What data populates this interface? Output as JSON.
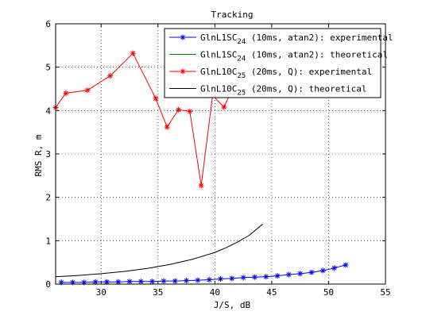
{
  "chart_data": {
    "type": "line",
    "title": "Tracking",
    "xlabel": "J/S, dB",
    "ylabel": "RMS R, m",
    "xlim": [
      26,
      55
    ],
    "ylim": [
      0,
      6
    ],
    "xticks": [
      30,
      35,
      40,
      45,
      50,
      55
    ],
    "yticks": [
      0,
      1,
      2,
      3,
      4,
      5,
      6
    ],
    "grid": true,
    "legend_position": "top-right",
    "series": [
      {
        "name": "GlnL1SC24 (10ms, atan2): experimental",
        "legend_base": "GlnL1SC",
        "legend_sub": "24",
        "legend_rest": " (10ms, atan2): experimental",
        "color": "#0000ff",
        "marker": "*",
        "x": [
          26.5,
          27.5,
          28.5,
          29.5,
          30.5,
          31.5,
          32.5,
          33.5,
          34.5,
          35.5,
          36.5,
          37.5,
          38.5,
          39.5,
          40.5,
          41.5,
          42.5,
          43.5,
          44.5,
          45.5,
          46.5,
          47.5,
          48.5,
          49.5,
          50.5,
          51.5
        ],
        "y": [
          0.04,
          0.04,
          0.04,
          0.05,
          0.05,
          0.05,
          0.06,
          0.06,
          0.06,
          0.07,
          0.07,
          0.08,
          0.09,
          0.1,
          0.12,
          0.13,
          0.15,
          0.16,
          0.17,
          0.19,
          0.22,
          0.24,
          0.27,
          0.31,
          0.37,
          0.44
        ]
      },
      {
        "name": "GlnL1SC24 (10ms, atan2): theoretical",
        "legend_base": "GlnL1SC",
        "legend_sub": "24",
        "legend_rest": " (10ms, atan2): theoretical",
        "color": "#008000",
        "marker": "",
        "x": [],
        "y": []
      },
      {
        "name": "GlnL10C25 (20ms, Q): experimental",
        "legend_base": "GlnL10C",
        "legend_sub": "25",
        "legend_rest": " (20ms, Q): experimental",
        "color": "#ff0000",
        "marker": "*",
        "x": [
          26,
          26.9,
          28.8,
          30.8,
          32.8,
          34.8,
          35.8,
          36.8,
          37.8,
          38.8,
          39.8,
          40.8,
          41.8
        ],
        "y": [
          4.07,
          4.4,
          4.47,
          4.8,
          5.32,
          4.28,
          3.62,
          4.02,
          3.98,
          2.27,
          4.35,
          4.08,
          4.65
        ]
      },
      {
        "name": "GlnL10C25 (20ms, Q): theoretical",
        "legend_base": "GlnL10C",
        "legend_sub": "25",
        "legend_rest": " (20ms, Q): theoretical",
        "color": "#000000",
        "marker": "",
        "x": [
          26,
          28,
          30,
          32,
          34,
          36,
          38,
          40,
          41,
          42,
          43,
          44.2
        ],
        "y": [
          0.17,
          0.2,
          0.24,
          0.29,
          0.36,
          0.45,
          0.57,
          0.73,
          0.84,
          0.97,
          1.12,
          1.38
        ]
      }
    ]
  }
}
